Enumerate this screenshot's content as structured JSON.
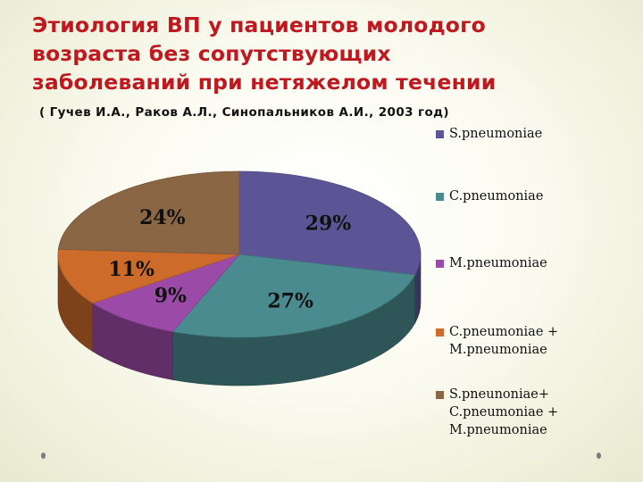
{
  "title_lines": [
    "Этиология ВП у пациентов молодого",
    "возраста без сопутствующих",
    "заболеваний при нетяжелом течении"
  ],
  "subtitle": "( Гучев И.А., Раков А.Л., Синопальников А.И., 2003 год)",
  "chart_data": {
    "type": "pie",
    "title": "",
    "categories": [
      "S.pneumoniae",
      "C.pneumoniae",
      "M.pneumoniae",
      "C.pneumoniae + M.pneumoniae",
      "S.pneunoniae+ C.pneumoniae + M.pneumoniae"
    ],
    "values": [
      29,
      27,
      9,
      11,
      24
    ],
    "data_labels": [
      "29%",
      "27%",
      "9%",
      "11%",
      "24%"
    ],
    "colors": [
      "#5b5596",
      "#4a8b8f",
      "#9c4aa8",
      "#cc6b2a",
      "#8b6645"
    ],
    "legend_position": "right",
    "style": "3d-pie"
  },
  "legend": [
    {
      "lines": [
        "S.pneumoniae"
      ]
    },
    {
      "lines": [
        "C.pneumoniae"
      ]
    },
    {
      "lines": [
        "M.pneumoniae"
      ]
    },
    {
      "lines": [
        "C.pneumoniae +",
        "M.pneumoniae"
      ]
    },
    {
      "lines": [
        "S.pneunoniae+",
        "C.pneumoniae +",
        "M.pneumoniae"
      ]
    }
  ]
}
